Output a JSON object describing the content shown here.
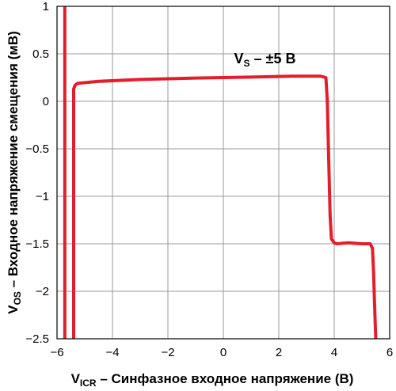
{
  "chart_data": {
    "type": "line",
    "title": "",
    "xlabel": {
      "main": "V",
      "sub": "ICR",
      "rest": " – Синфазное входное напряжение (В)"
    },
    "ylabel": {
      "main": "V",
      "sub": "OS",
      "rest": " – Входное напряжение смещения (мВ)"
    },
    "xlim": [
      -6,
      6
    ],
    "ylim": [
      -2.5,
      1
    ],
    "xticks": [
      -6,
      -4,
      -2,
      0,
      2,
      4,
      6
    ],
    "xtick_labels": [
      "−6",
      "−4",
      "−2",
      "0",
      "2",
      "4",
      "6"
    ],
    "yticks": [
      1,
      0.5,
      0,
      -0.5,
      -1,
      -1.5,
      -2,
      -2.5
    ],
    "ytick_labels": [
      "1",
      "0.5",
      "0",
      "−0.5",
      "−1",
      "−1.5",
      "−2",
      "−2.5"
    ],
    "grid": true,
    "line_color": "#e31e2c",
    "annotation": {
      "main": "V",
      "sub": "S",
      "rest": " – ±5 В",
      "x": 1.5,
      "y": 0.45
    },
    "series": [
      {
        "x": [
          -5.72,
          -5.72
        ],
        "y": [
          -2.5,
          1
        ]
      },
      {
        "x": [
          -5.4,
          -5.4,
          -5.35,
          -5.25,
          -4.5,
          -3,
          -1,
          1,
          2.5,
          3.5,
          3.7,
          3.75,
          3.8,
          3.85,
          3.9,
          4.0,
          4.1,
          4.5,
          5.0,
          5.3,
          5.38,
          5.42,
          5.45,
          5.48,
          5.5
        ],
        "y": [
          -2.5,
          0.13,
          0.17,
          0.19,
          0.21,
          0.23,
          0.245,
          0.255,
          0.265,
          0.265,
          0.25,
          0.0,
          -0.6,
          -1.2,
          -1.45,
          -1.49,
          -1.5,
          -1.49,
          -1.5,
          -1.5,
          -1.55,
          -1.8,
          -2.1,
          -2.35,
          -2.5
        ]
      }
    ]
  }
}
